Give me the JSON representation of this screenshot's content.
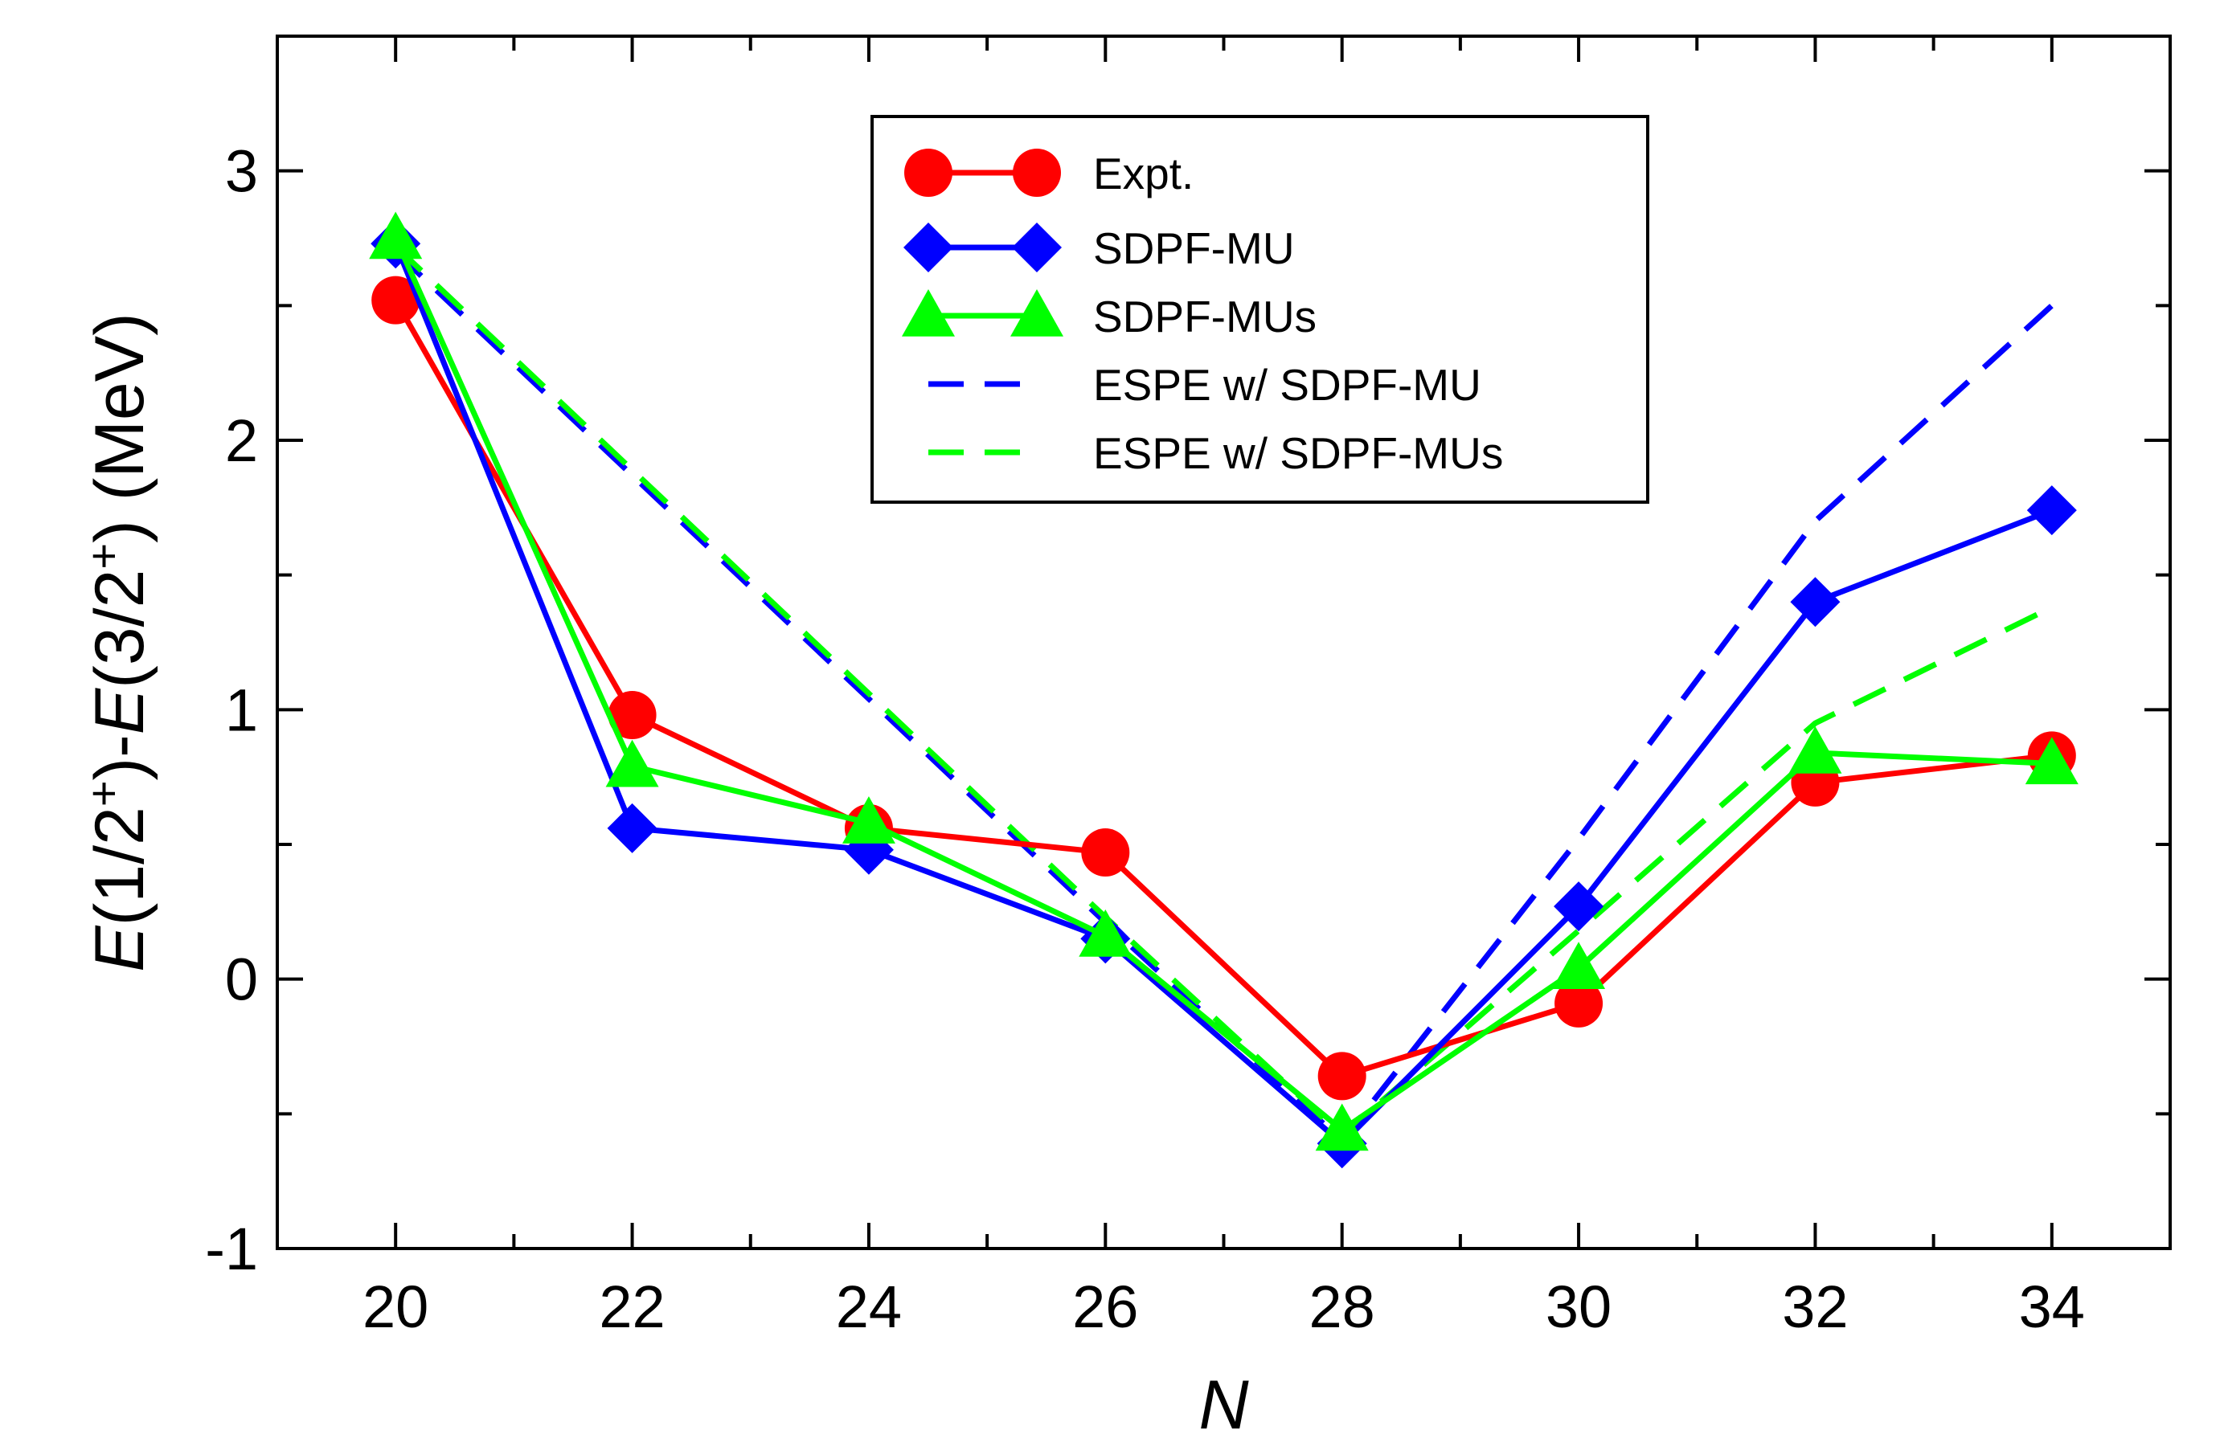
{
  "chart_data": {
    "type": "line",
    "xlabel": "N",
    "ylabel_parts": [
      {
        "t": "E",
        "italic": true
      },
      {
        "t": "(1/2"
      },
      {
        "t": "+",
        "sup": true
      },
      {
        "t": ")-"
      },
      {
        "t": "E",
        "italic": true
      },
      {
        "t": "(3/2"
      },
      {
        "t": "+",
        "sup": true
      },
      {
        "t": ") (MeV)"
      }
    ],
    "xlim": [
      19,
      35
    ],
    "ylim": [
      -1,
      3.5
    ],
    "xticks": [
      20,
      22,
      24,
      26,
      28,
      30,
      32,
      34
    ],
    "xtick_labels": [
      "20",
      "22",
      "24",
      "26",
      "28",
      "30",
      "32",
      "34"
    ],
    "yticks": [
      -1,
      0,
      1,
      2,
      3
    ],
    "ytick_labels": [
      "-1",
      "0",
      "1",
      "2",
      "3"
    ],
    "legend_position": "top-center",
    "series": [
      {
        "name": "Expt.",
        "color": "#ff0000",
        "marker": "circle",
        "line": "solid",
        "x": [
          20,
          22,
          24,
          26,
          28,
          30,
          32,
          34
        ],
        "y": [
          2.52,
          0.98,
          0.56,
          0.47,
          -0.36,
          -0.09,
          0.73,
          0.83
        ]
      },
      {
        "name": "SDPF-MU",
        "color": "#0000ff",
        "marker": "diamond",
        "line": "solid",
        "x": [
          20,
          22,
          24,
          26,
          28,
          30,
          32,
          34
        ],
        "y": [
          2.73,
          0.56,
          0.48,
          0.15,
          -0.61,
          0.27,
          1.4,
          1.74
        ]
      },
      {
        "name": "SDPF-MUs",
        "color": "#00ff00",
        "marker": "triangle",
        "line": "solid",
        "x": [
          20,
          22,
          24,
          26,
          28,
          30,
          32,
          34
        ],
        "y": [
          2.75,
          0.79,
          0.58,
          0.16,
          -0.56,
          0.04,
          0.84,
          0.8
        ]
      },
      {
        "name": "ESPE w/ SDPF-MU",
        "color": "#0000ff",
        "marker": "none",
        "line": "dashed",
        "x": [
          20,
          26,
          28,
          30,
          32,
          34
        ],
        "y": [
          2.7,
          0.21,
          -0.6,
          0.52,
          1.7,
          2.5
        ]
      },
      {
        "name": "ESPE w/ SDPF-MUs",
        "color": "#00ff00",
        "marker": "none",
        "line": "dashed",
        "x": [
          20,
          26,
          28,
          30,
          32,
          34
        ],
        "y": [
          2.72,
          0.23,
          -0.58,
          0.18,
          0.95,
          1.38
        ]
      }
    ]
  }
}
